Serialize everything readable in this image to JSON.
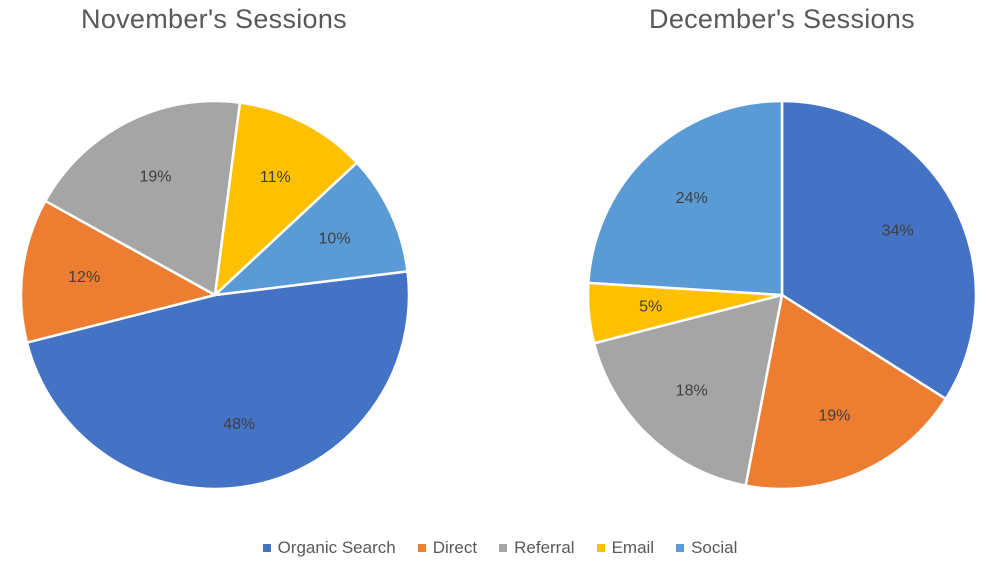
{
  "chart_data": [
    {
      "type": "pie",
      "title": "November's Sessions",
      "categories": [
        "Organic Search",
        "Direct",
        "Referral",
        "Email",
        "Social"
      ],
      "values": [
        48,
        12,
        19,
        11,
        10
      ],
      "labels": [
        "48%",
        "12%",
        "19%",
        "11%",
        "10%"
      ]
    },
    {
      "type": "pie",
      "title": "December's Sessions",
      "categories": [
        "Organic Search",
        "Direct",
        "Referral",
        "Email",
        "Social"
      ],
      "values": [
        34,
        19,
        18,
        5,
        24
      ],
      "labels": [
        "34%",
        "19%",
        "18%",
        "5%",
        "24%"
      ]
    }
  ],
  "legend": [
    {
      "label": "Organic Search",
      "color": "#4472C4"
    },
    {
      "label": "Direct",
      "color": "#ED7D31"
    },
    {
      "label": "Referral",
      "color": "#A5A5A5"
    },
    {
      "label": "Email",
      "color": "#FFC000"
    },
    {
      "label": "Social",
      "color": "#5B9BD5"
    }
  ]
}
